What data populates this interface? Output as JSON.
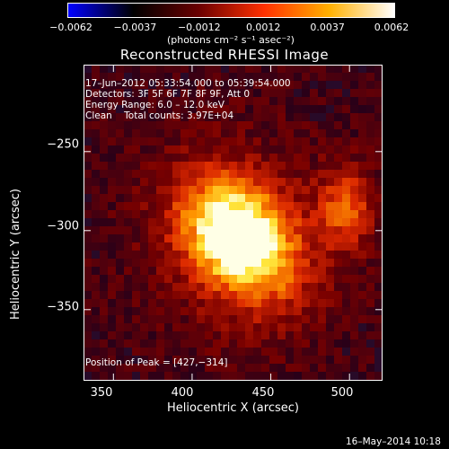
{
  "colorbar": {
    "tick_labels": [
      "−0.0062",
      "−0.0037",
      "−0.0012",
      "0.0012",
      "0.0037",
      "0.0062"
    ],
    "units": "(photons cm⁻² s⁻¹ asec⁻²)",
    "colors": [
      "#0000ff",
      "#000000",
      "#6a0000",
      "#ff3000",
      "#ffb000",
      "#ffffff"
    ]
  },
  "title": "Reconstructed RHESSI Image",
  "annotations": {
    "time_range": "17–Jun–2012 05:33:54.000 to 05:39:54.000",
    "detectors": "Detectors: 3F 5F 6F 7F 8F 9F, Att 0",
    "energy_range": "Energy Range: 6.0 – 12.0 keV",
    "clean": "Clean    Total counts: 3.97E+04",
    "peak": "Position of Peak = [427,−314]"
  },
  "axes": {
    "xlabel": "Heliocentric X (arcsec)",
    "ylabel": "Heliocentric Y (arcsec)",
    "xticks": [
      "350",
      "400",
      "450",
      "500"
    ],
    "yticks": [
      "−250",
      "−300",
      "−350"
    ]
  },
  "timestamp": "16–May–2014 10:18",
  "chart_data": {
    "type": "heatmap",
    "title": "Reconstructed RHESSI Image",
    "xlabel": "Heliocentric X (arcsec)",
    "ylabel": "Heliocentric Y (arcsec)",
    "xlim": [
      331,
      521
    ],
    "ylim": [
      -395,
      -195
    ],
    "xticks": [
      350,
      400,
      450,
      500
    ],
    "yticks": [
      -250,
      -300,
      -350
    ],
    "colorbar_range": [
      -0.0062,
      0.0062
    ],
    "colorbar_ticks": [
      -0.0062,
      -0.0037,
      -0.0012,
      0.0012,
      0.0037,
      0.0062
    ],
    "peak_position": [
      427,
      -314
    ],
    "sources": [
      {
        "x": 430,
        "y": -305,
        "intensity": 0.0062
      },
      {
        "x": 498,
        "y": -285,
        "intensity": 0.003
      }
    ],
    "colormap": "blue-black-red-yellow-white"
  }
}
